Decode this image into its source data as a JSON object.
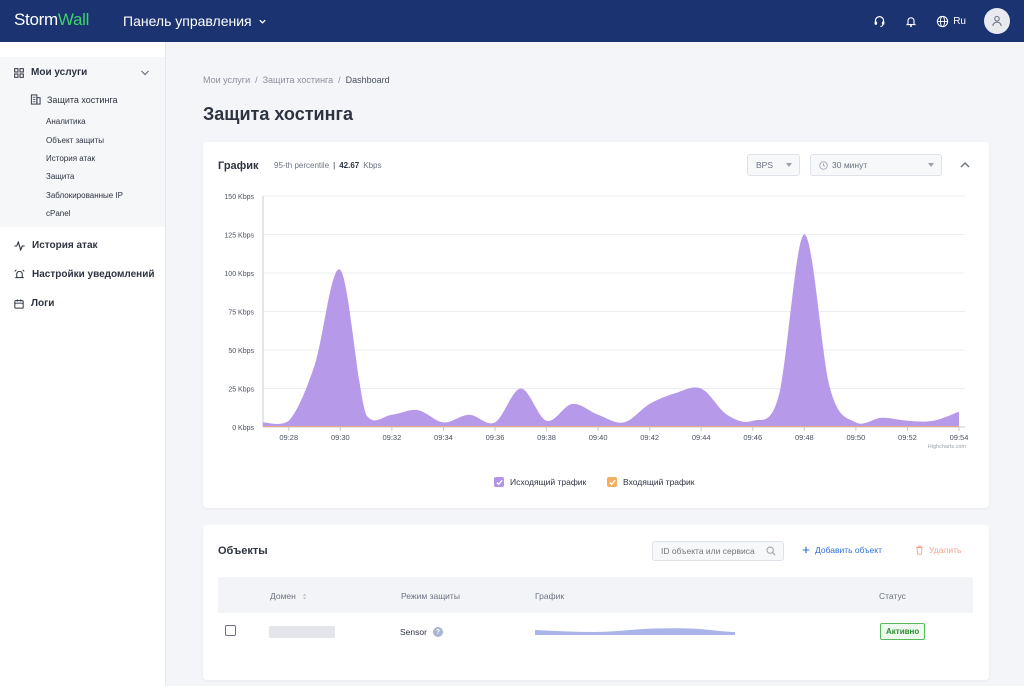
{
  "header": {
    "logo_part1": "Storm",
    "logo_part2": "Wall",
    "panel_title": "Панель управления",
    "lang": "Ru"
  },
  "sidebar": {
    "services": "Мои услуги",
    "hosting": "Защита хостинга",
    "items": [
      "Аналитика",
      "Объект защиты",
      "История атак",
      "Защита",
      "Заблокированные IP",
      "cPanel"
    ],
    "attack_history": "История атак",
    "notifications": "Настройки уведомлений",
    "logs": "Логи"
  },
  "breadcrumb": {
    "item1": "Мои услуги",
    "item2": "Защита хостинга",
    "current": "Dashboard",
    "sep": "/"
  },
  "page_title": "Защита хостинга",
  "graph": {
    "title": "График",
    "percentile_label": "95-th percentile",
    "percentile_value": "42.67",
    "percentile_unit": "Kbps",
    "unit_select": "BPS",
    "period_select": "30 минут",
    "credit": "Highcharts.com"
  },
  "chart_data": {
    "type": "area",
    "x": [
      "09:27",
      "09:28",
      "09:29",
      "09:30",
      "09:31",
      "09:32",
      "09:33",
      "09:34",
      "09:35",
      "09:36",
      "09:37",
      "09:38",
      "09:39",
      "09:40",
      "09:41",
      "09:42",
      "09:43",
      "09:44",
      "09:45",
      "09:46",
      "09:47",
      "09:48",
      "09:49",
      "09:50",
      "09:51",
      "09:52",
      "09:53",
      "09:54"
    ],
    "x_ticks": [
      "09:28",
      "09:30",
      "09:32",
      "09:34",
      "09:36",
      "09:38",
      "09:40",
      "09:42",
      "09:44",
      "09:46",
      "09:48",
      "09:50",
      "09:52",
      "09:54"
    ],
    "y_ticks": [
      "0 Kbps",
      "25 Kbps",
      "50 Kbps",
      "75 Kbps",
      "100 Kbps",
      "125 Kbps",
      "150 Kbps"
    ],
    "ylim": [
      0,
      150
    ],
    "series": [
      {
        "name": "Исходящий трафик",
        "color": "#b394e8",
        "values": [
          3,
          4,
          40,
          102,
          8,
          8,
          11,
          3,
          8,
          3,
          25,
          4,
          15,
          8,
          3,
          15,
          22,
          25,
          8,
          4,
          20,
          125,
          25,
          3,
          6,
          4,
          4,
          10
        ]
      },
      {
        "name": "Входящий трафик",
        "color": "#f3b061",
        "values": [
          0.5,
          0.5,
          0.5,
          0.5,
          0.5,
          0.5,
          0.5,
          0.5,
          0.5,
          0.5,
          0.5,
          0.5,
          0.5,
          0.5,
          0.5,
          0.5,
          0.5,
          0.5,
          0.5,
          0.5,
          0.5,
          0.5,
          0.5,
          0.5,
          0.5,
          0.5,
          0.5,
          0.5
        ]
      }
    ],
    "grid": true,
    "legend_position": "bottom-center"
  },
  "objects": {
    "title": "Объекты",
    "search_placeholder": "ID объекта или сервиса",
    "add_label": "Добавить объект",
    "delete_label": "Удалить",
    "columns": [
      "Домен",
      "Режим защиты",
      "График",
      "Статус"
    ],
    "rows": [
      {
        "mode": "Sensor",
        "status": "Активно"
      }
    ]
  },
  "colors": {
    "header_bg": "#1b3370",
    "accent_green": "#3fd16b",
    "link_blue": "#2f6fdb",
    "delete_orange": "#f2a58f"
  }
}
